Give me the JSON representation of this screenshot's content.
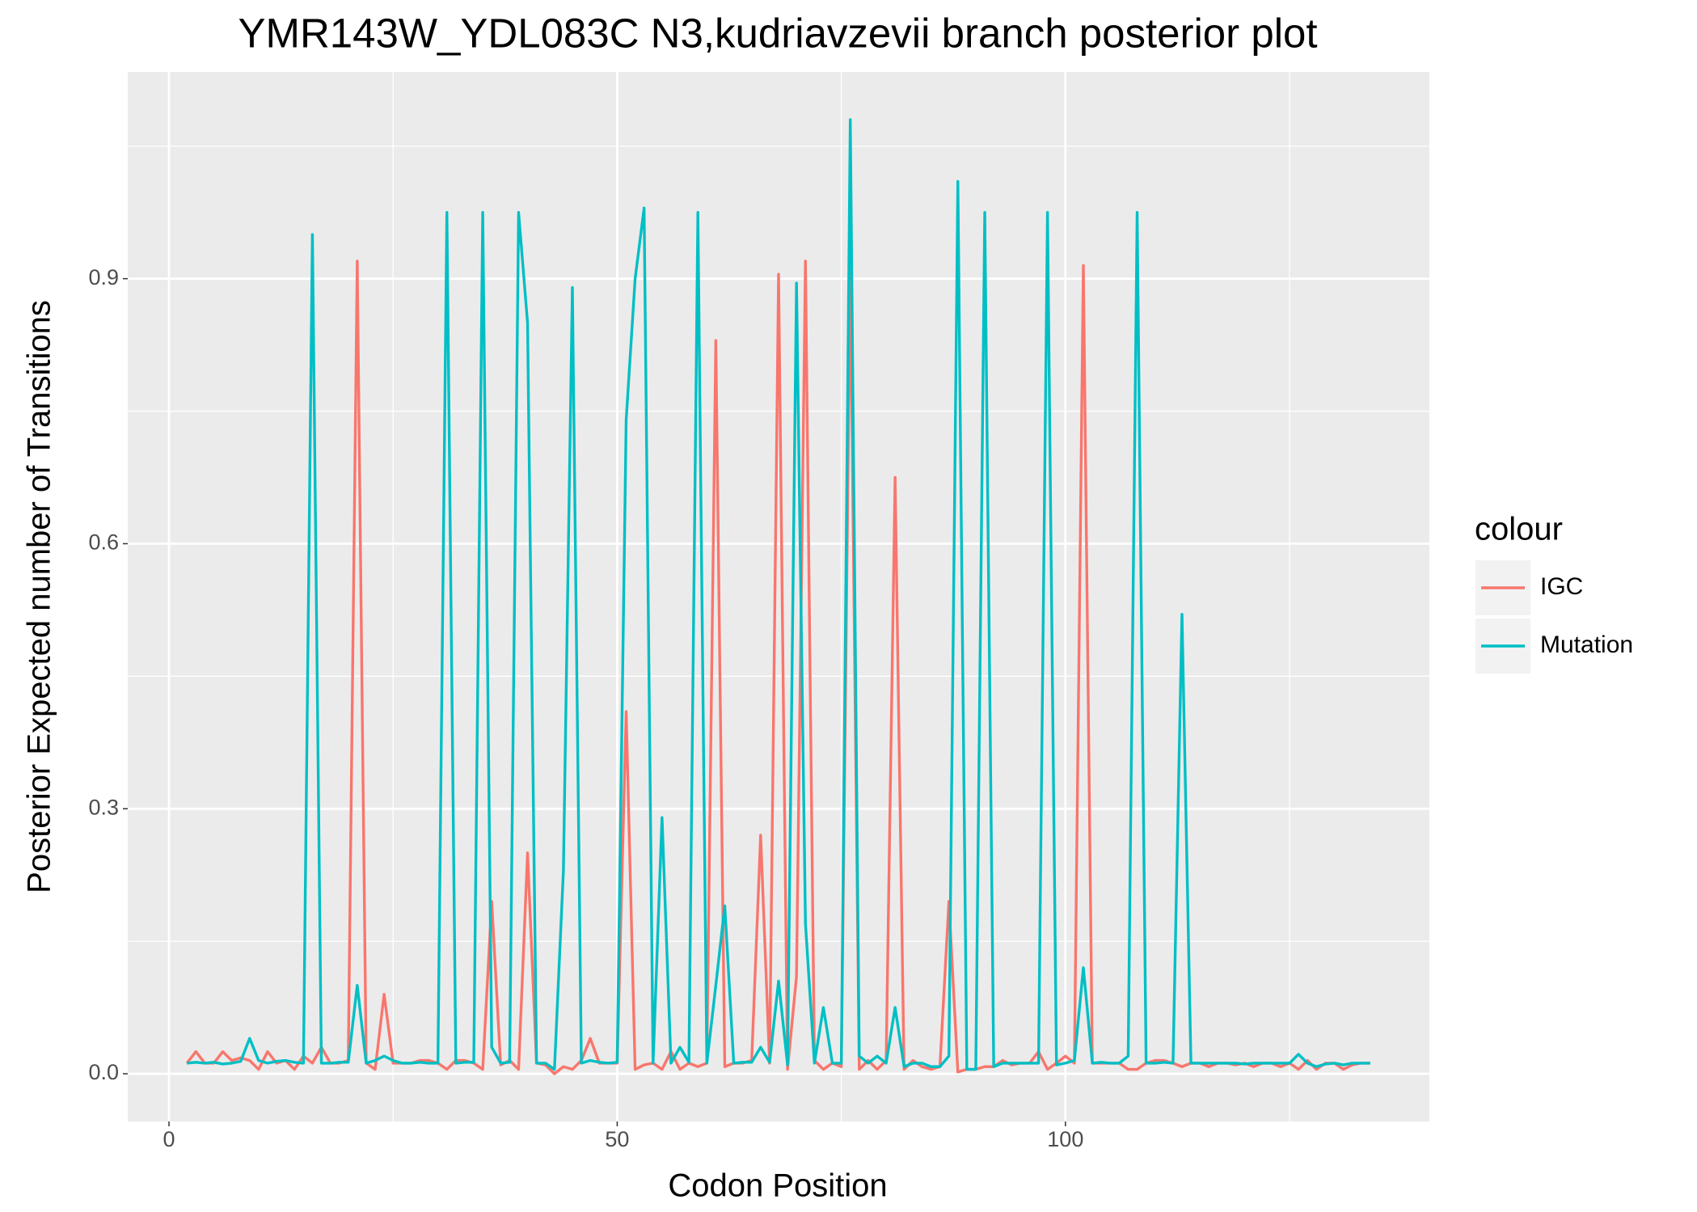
{
  "chart_data": {
    "type": "line",
    "title": "YMR143W_YDL083C N3,kudriavzevii branch posterior plot",
    "x_label": "Codon Position",
    "y_label": "Posterior Expected number of Transitions",
    "legend_title": "colour",
    "legend_position": "right",
    "grid": true,
    "background": "#ebebeb",
    "xlim": [
      -4.6,
      140.6
    ],
    "ylim": [
      -0.054,
      1.134
    ],
    "xticks": [
      0,
      50,
      100
    ],
    "yticks": [
      {
        "value": 0,
        "label": "0.0"
      },
      {
        "value": 0.3,
        "label": "0.3"
      },
      {
        "value": 0.6,
        "label": "0.6"
      },
      {
        "value": 0.9,
        "label": "0.9"
      }
    ],
    "x": [
      2,
      3,
      4,
      5,
      6,
      7,
      8,
      9,
      10,
      11,
      12,
      13,
      14,
      15,
      16,
      17,
      18,
      19,
      20,
      21,
      22,
      23,
      24,
      25,
      26,
      27,
      28,
      29,
      30,
      31,
      32,
      33,
      34,
      35,
      36,
      37,
      38,
      39,
      40,
      41,
      42,
      43,
      44,
      45,
      46,
      47,
      48,
      49,
      50,
      51,
      52,
      53,
      54,
      55,
      56,
      57,
      58,
      59,
      60,
      61,
      62,
      63,
      64,
      65,
      66,
      67,
      68,
      69,
      70,
      71,
      72,
      73,
      74,
      75,
      76,
      77,
      78,
      79,
      80,
      81,
      82,
      83,
      84,
      85,
      86,
      87,
      88,
      89,
      90,
      91,
      92,
      93,
      94,
      95,
      96,
      97,
      98,
      99,
      100,
      101,
      102,
      103,
      104,
      105,
      106,
      107,
      108,
      109,
      110,
      111,
      112,
      113,
      114,
      115,
      116,
      117,
      118,
      119,
      120,
      121,
      122,
      123,
      124,
      125,
      126,
      127,
      128,
      129,
      130,
      131,
      132,
      133,
      134
    ],
    "series": [
      {
        "name": "IGC",
        "color": "#F8766D",
        "values": [
          0.012,
          0.025,
          0.012,
          0.012,
          0.025,
          0.015,
          0.018,
          0.015,
          0.005,
          0.025,
          0.012,
          0.015,
          0.005,
          0.02,
          0.012,
          0.03,
          0.012,
          0.012,
          0.015,
          0.92,
          0.012,
          0.005,
          0.09,
          0.012,
          0.012,
          0.012,
          0.015,
          0.015,
          0.012,
          0.005,
          0.015,
          0.015,
          0.012,
          0.005,
          0.195,
          0.01,
          0.015,
          0.005,
          0.25,
          0.012,
          0.01,
          0.0,
          0.008,
          0.005,
          0.015,
          0.04,
          0.012,
          0.012,
          0.012,
          0.41,
          0.005,
          0.01,
          0.012,
          0.005,
          0.025,
          0.005,
          0.012,
          0.008,
          0.012,
          0.83,
          0.008,
          0.012,
          0.012,
          0.015,
          0.27,
          0.012,
          0.905,
          0.005,
          0.11,
          0.92,
          0.015,
          0.005,
          0.012,
          0.008,
          0.91,
          0.005,
          0.015,
          0.005,
          0.015,
          0.675,
          0.005,
          0.015,
          0.008,
          0.005,
          0.008,
          0.195,
          0.002,
          0.005,
          0.005,
          0.008,
          0.008,
          0.015,
          0.01,
          0.012,
          0.012,
          0.025,
          0.005,
          0.012,
          0.02,
          0.012,
          0.915,
          0.012,
          0.012,
          0.012,
          0.012,
          0.005,
          0.005,
          0.012,
          0.015,
          0.015,
          0.012,
          0.008,
          0.012,
          0.012,
          0.008,
          0.012,
          0.012,
          0.01,
          0.012,
          0.008,
          0.012,
          0.012,
          0.008,
          0.012,
          0.005,
          0.015,
          0.005,
          0.012,
          0.012,
          0.005,
          0.01,
          0.012,
          0.012
        ]
      },
      {
        "name": "Mutation",
        "color": "#00BFC4",
        "values": [
          0.012,
          0.013,
          0.012,
          0.013,
          0.011,
          0.012,
          0.014,
          0.04,
          0.015,
          0.012,
          0.014,
          0.015,
          0.013,
          0.012,
          0.95,
          0.012,
          0.012,
          0.013,
          0.013,
          0.1,
          0.012,
          0.015,
          0.02,
          0.015,
          0.012,
          0.012,
          0.013,
          0.012,
          0.012,
          0.975,
          0.012,
          0.013,
          0.013,
          0.975,
          0.03,
          0.012,
          0.013,
          0.975,
          0.85,
          0.012,
          0.012,
          0.005,
          0.23,
          0.89,
          0.012,
          0.015,
          0.013,
          0.012,
          0.013,
          0.74,
          0.9,
          0.98,
          0.012,
          0.29,
          0.012,
          0.03,
          0.013,
          0.975,
          0.012,
          0.1,
          0.19,
          0.012,
          0.013,
          0.013,
          0.03,
          0.013,
          0.105,
          0.01,
          0.895,
          0.17,
          0.012,
          0.075,
          0.012,
          0.012,
          1.08,
          0.02,
          0.012,
          0.02,
          0.012,
          0.075,
          0.008,
          0.012,
          0.012,
          0.008,
          0.008,
          0.02,
          1.01,
          0.005,
          0.005,
          0.975,
          0.008,
          0.012,
          0.012,
          0.012,
          0.012,
          0.012,
          0.975,
          0.01,
          0.012,
          0.015,
          0.12,
          0.012,
          0.013,
          0.012,
          0.012,
          0.02,
          0.975,
          0.012,
          0.012,
          0.013,
          0.012,
          0.52,
          0.012,
          0.012,
          0.012,
          0.012,
          0.012,
          0.012,
          0.011,
          0.012,
          0.012,
          0.012,
          0.012,
          0.012,
          0.022,
          0.012,
          0.008,
          0.011,
          0.012,
          0.01,
          0.012,
          0.012,
          0.012
        ]
      }
    ]
  }
}
